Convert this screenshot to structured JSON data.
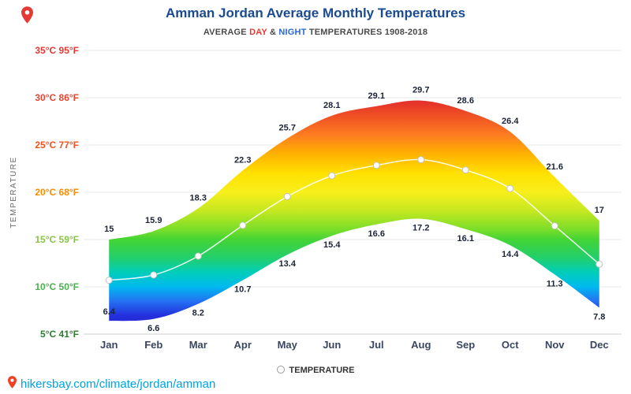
{
  "page": {
    "title": "Amman Jordan Average Monthly Temperatures",
    "subtitle_prefix": "AVERAGE ",
    "subtitle_day": "DAY",
    "subtitle_amp": " & ",
    "subtitle_night": "NIGHT",
    "subtitle_suffix": " TEMPERATURES 1908-2018",
    "footer_url": "hikersbay.com/climate/jordan/amman"
  },
  "axis": {
    "y_title": "TEMPERATURE",
    "y_ticks": [
      {
        "label": "35°C 95°F",
        "c": 35,
        "color": "#e53935"
      },
      {
        "label": "30°C 86°F",
        "c": 30,
        "color": "#e8432f"
      },
      {
        "label": "25°C 77°F",
        "c": 25,
        "color": "#f4511e"
      },
      {
        "label": "20°C 68°F",
        "c": 20,
        "color": "#fb8c00"
      },
      {
        "label": "15°C 59°F",
        "c": 15,
        "color": "#8bc34a"
      },
      {
        "label": "10°C 50°F",
        "c": 10,
        "color": "#4caf50"
      },
      {
        "label": "5°C 41°F",
        "c": 5,
        "color": "#2e7d32"
      }
    ]
  },
  "chart_data": {
    "type": "area",
    "title": "Amman Jordan Average Monthly Temperatures",
    "subtitle": "AVERAGE DAY & NIGHT TEMPERATURES 1908-2018",
    "xlabel": "",
    "ylabel": "TEMPERATURE",
    "ylim": [
      5,
      35
    ],
    "grid": true,
    "legend": "TEMPERATURE",
    "legend_position": "bottom",
    "categories": [
      "Jan",
      "Feb",
      "Mar",
      "Apr",
      "May",
      "Jun",
      "Jul",
      "Aug",
      "Sep",
      "Oct",
      "Nov",
      "Dec"
    ],
    "series": [
      {
        "name": "Day",
        "values": [
          15,
          15.9,
          18.3,
          22.3,
          25.7,
          28.1,
          29.1,
          29.7,
          28.6,
          26.4,
          21.6,
          17
        ]
      },
      {
        "name": "Night",
        "values": [
          6.4,
          6.6,
          8.2,
          10.7,
          13.4,
          15.4,
          16.6,
          17.2,
          16.1,
          14.4,
          11.3,
          7.8
        ]
      }
    ],
    "gradient_stops": [
      {
        "t": 35,
        "color": "#cc2222"
      },
      {
        "t": 30,
        "color": "#e0282e"
      },
      {
        "t": 28,
        "color": "#f05223"
      },
      {
        "t": 26,
        "color": "#fd7e20"
      },
      {
        "t": 24,
        "color": "#ffb300"
      },
      {
        "t": 22,
        "color": "#ffe100"
      },
      {
        "t": 20,
        "color": "#f7ef1c"
      },
      {
        "t": 18,
        "color": "#c4e821"
      },
      {
        "t": 16,
        "color": "#77dd29"
      },
      {
        "t": 15,
        "color": "#44d435"
      },
      {
        "t": 13,
        "color": "#21cf6e"
      },
      {
        "t": 11.5,
        "color": "#00cdbb"
      },
      {
        "t": 10,
        "color": "#00b9ef"
      },
      {
        "t": 8.5,
        "color": "#2472f2"
      },
      {
        "t": 7,
        "color": "#2430dd"
      },
      {
        "t": 5,
        "color": "#2a20c8"
      }
    ]
  }
}
